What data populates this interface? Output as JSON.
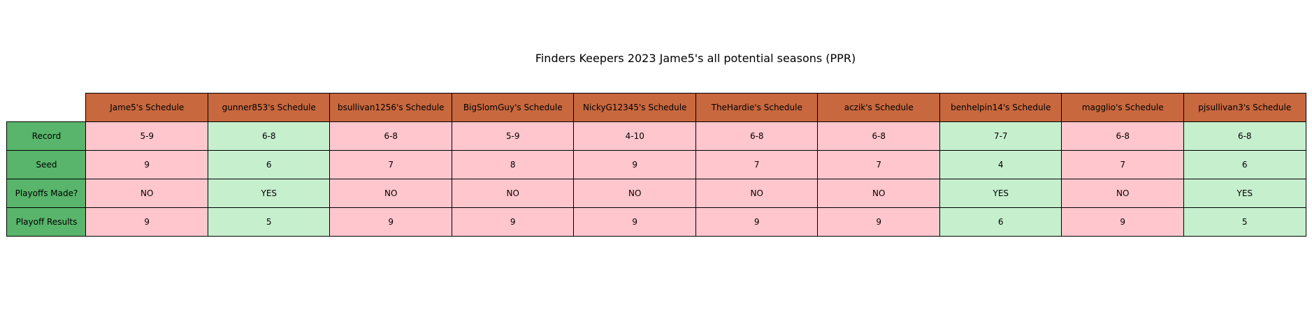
{
  "chart_data": {
    "type": "table",
    "title": "Finders Keepers 2023 Jame5's all potential seasons (PPR)",
    "columns": [
      "Jame5's Schedule",
      "gunner853's Schedule",
      "bsullivan1256's Schedule",
      "BigSlomGuy's Schedule",
      "NickyG12345's Schedule",
      "TheHardie's Schedule",
      "aczik's Schedule",
      "benhelpin14's Schedule",
      "magglio's Schedule",
      "pjsullivan3's Schedule"
    ],
    "rows": [
      {
        "label": "Record",
        "values": [
          "5-9",
          "6-8",
          "6-8",
          "5-9",
          "4-10",
          "6-8",
          "6-8",
          "7-7",
          "6-8",
          "6-8"
        ]
      },
      {
        "label": "Seed",
        "values": [
          "9",
          "6",
          "7",
          "8",
          "9",
          "7",
          "7",
          "4",
          "7",
          "6"
        ]
      },
      {
        "label": "Playoffs Made?",
        "values": [
          "NO",
          "YES",
          "NO",
          "NO",
          "NO",
          "NO",
          "NO",
          "YES",
          "NO",
          "YES"
        ]
      },
      {
        "label": "Playoff Results",
        "values": [
          "9",
          "5",
          "9",
          "9",
          "9",
          "9",
          "9",
          "6",
          "9",
          "5"
        ]
      }
    ],
    "colors": {
      "header": "#c8683f",
      "row_header": "#58b56b",
      "playoffs_missed": "#ffc6cd",
      "playoffs_made": "#c6efce"
    }
  }
}
